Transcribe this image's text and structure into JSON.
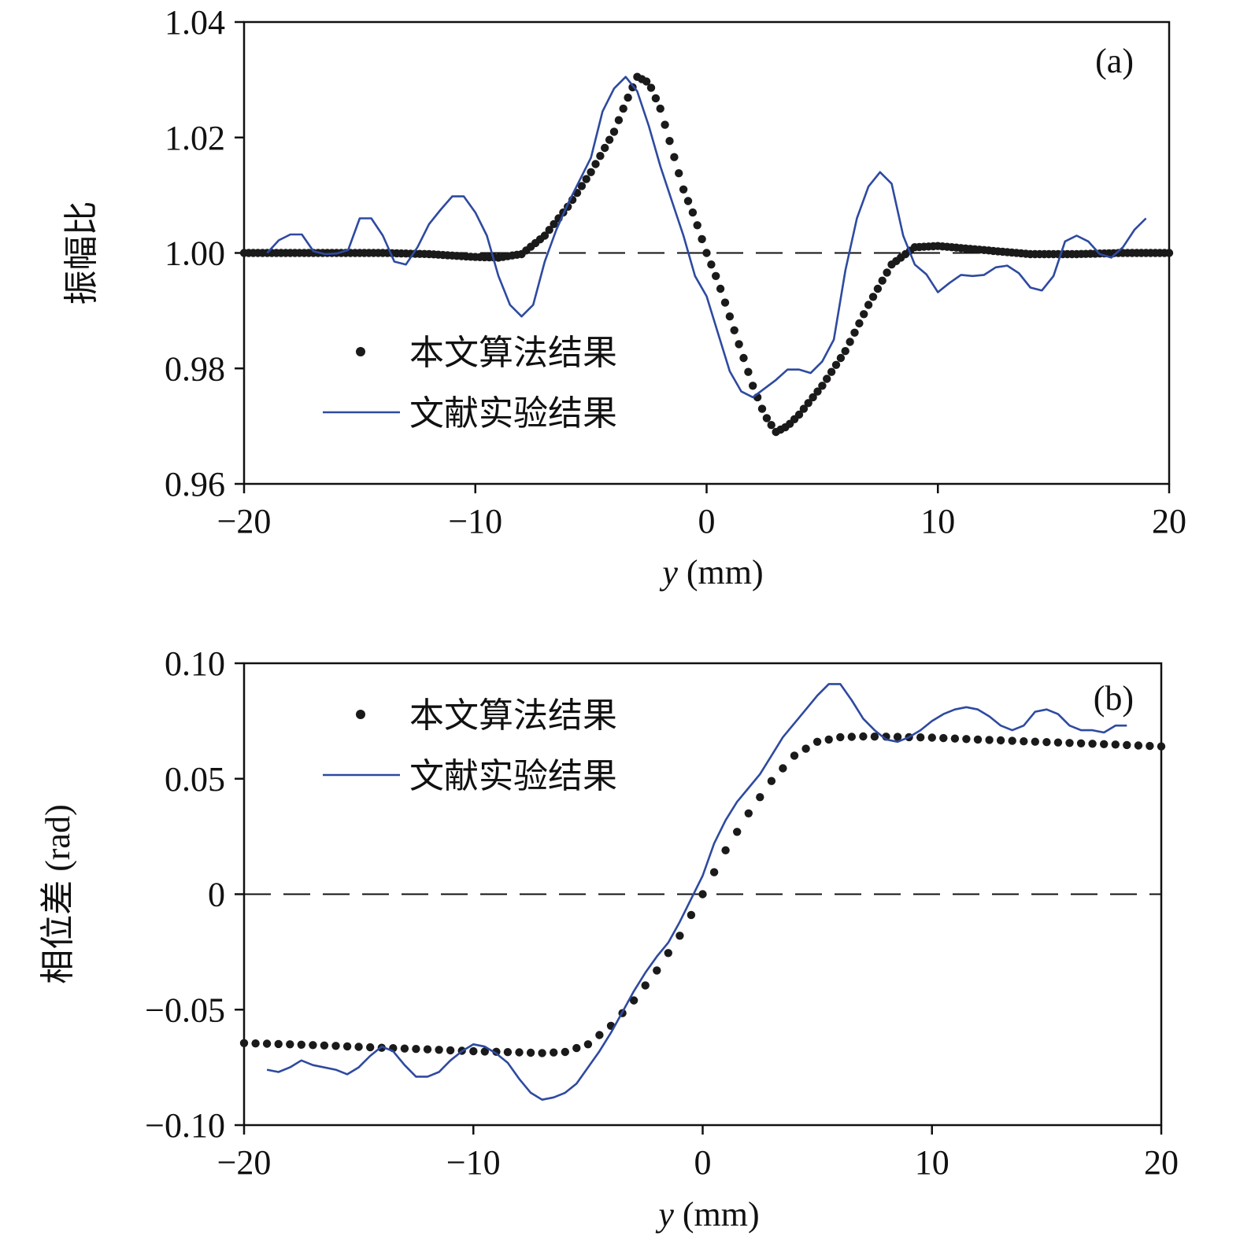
{
  "chart_data": [
    {
      "type": "line",
      "panel_label": "(a)",
      "xlabel_var": "y",
      "xlabel_unit": " (mm)",
      "ylabel": "振幅比",
      "xlim": [
        -20,
        20
      ],
      "ylim": [
        0.96,
        1.04
      ],
      "x_ticks": [
        -20,
        -10,
        0,
        10,
        20
      ],
      "x_tick_labels": [
        "−20",
        "−10",
        "0",
        "10",
        "20"
      ],
      "y_ticks": [
        0.96,
        0.98,
        1.0,
        1.02,
        1.04
      ],
      "y_tick_labels": [
        "0.96",
        "0.98",
        "1.00",
        "1.02",
        "1.04"
      ],
      "reference_line": {
        "y": 1.0,
        "style": "dashed"
      },
      "legend_position": "middle-left",
      "series": [
        {
          "name": "本文算法结果",
          "style": "dots",
          "color": "#1a1a1a",
          "x": [
            -20,
            -18,
            -16,
            -14,
            -12,
            -10,
            -9,
            -8,
            -7,
            -6,
            -5,
            -4,
            -3.5,
            -3,
            -2.5,
            -2,
            -1.5,
            -1,
            -0.5,
            0,
            0.5,
            1,
            1.5,
            2,
            2.5,
            3,
            3.5,
            4,
            5,
            6,
            7,
            8,
            9,
            10,
            12,
            14,
            16,
            18,
            20
          ],
          "y": [
            1.0,
            1.0,
            1.0,
            1.0,
            0.9998,
            0.9993,
            0.9992,
            0.9998,
            1.003,
            1.008,
            1.014,
            1.021,
            1.026,
            1.0305,
            1.0295,
            1.025,
            1.018,
            1.011,
            1.006,
            1.0,
            0.995,
            0.989,
            0.983,
            0.977,
            0.972,
            0.969,
            0.97,
            0.972,
            0.977,
            0.983,
            0.991,
            0.998,
            1.001,
            1.0012,
            1.0005,
            0.9998,
            0.9998,
            1.0,
            1.0
          ]
        },
        {
          "name": "文献实验结果",
          "style": "line",
          "color": "#2e4aa0",
          "x": [
            -19,
            -18.5,
            -18,
            -17.5,
            -17,
            -16.5,
            -16,
            -15.5,
            -15,
            -14.5,
            -14,
            -13.5,
            -13,
            -12.5,
            -12,
            -11.5,
            -11,
            -10.5,
            -10,
            -9.5,
            -9,
            -8.5,
            -8,
            -7.5,
            -7,
            -6.5,
            -6,
            -5.5,
            -5,
            -4.5,
            -4,
            -3.5,
            -3,
            -2.5,
            -2,
            -1.5,
            -1,
            -0.5,
            0,
            0.5,
            1,
            1.5,
            2,
            2.5,
            3,
            3.5,
            4,
            4.5,
            5,
            5.5,
            6,
            6.5,
            7,
            7.5,
            8,
            8.5,
            9,
            9.5,
            10,
            10.5,
            11,
            11.5,
            12,
            12.5,
            13,
            13.5,
            14,
            14.5,
            15,
            15.5,
            16,
            16.5,
            17,
            17.5,
            18,
            18.5,
            19
          ],
          "y": [
            1.0,
            1.0022,
            1.0032,
            1.0032,
            1.0003,
            0.9998,
            0.9999,
            1.0005,
            1.006,
            1.006,
            1.003,
            0.9985,
            0.998,
            1.001,
            1.005,
            1.0075,
            1.0098,
            1.0098,
            1.007,
            1.003,
            0.996,
            0.991,
            0.989,
            0.991,
            0.9985,
            1.004,
            1.0085,
            1.0125,
            1.0165,
            1.0245,
            1.0285,
            1.0305,
            1.028,
            1.022,
            1.015,
            1.009,
            1.003,
            0.996,
            0.9925,
            0.986,
            0.9795,
            0.976,
            0.975,
            0.9765,
            0.978,
            0.9798,
            0.9798,
            0.9792,
            0.9812,
            0.985,
            0.997,
            1.006,
            1.0115,
            1.014,
            1.012,
            1.003,
            0.998,
            0.9963,
            0.9932,
            0.9948,
            0.9962,
            0.996,
            0.9962,
            0.9975,
            0.9978,
            0.9965,
            0.994,
            0.9935,
            0.996,
            1.002,
            1.003,
            1.002,
            0.9998,
            0.9992,
            1.001,
            1.004,
            1.006
          ]
        }
      ]
    },
    {
      "type": "line",
      "panel_label": "(b)",
      "xlabel_var": "y",
      "xlabel_unit": " (mm)",
      "ylabel": "相位差 (rad)",
      "xlim": [
        -20,
        20
      ],
      "ylim": [
        -0.1,
        0.1
      ],
      "x_ticks": [
        -20,
        -10,
        0,
        10,
        20
      ],
      "x_tick_labels": [
        "−20",
        "−10",
        "0",
        "10",
        "20"
      ],
      "y_ticks": [
        -0.1,
        -0.05,
        0,
        0.05,
        0.1
      ],
      "y_tick_labels": [
        "−0.10",
        "−0.05",
        "0",
        "0.05",
        "0.10"
      ],
      "reference_line": {
        "y": 0,
        "style": "dashed"
      },
      "legend_position": "top-left",
      "series": [
        {
          "name": "本文算法结果",
          "style": "dots",
          "color": "#1a1a1a",
          "x": [
            -20,
            -18,
            -16,
            -14,
            -12,
            -10,
            -8,
            -7,
            -6,
            -5,
            -4,
            -3,
            -2,
            -1,
            0,
            1,
            2,
            3,
            4,
            5,
            6,
            7,
            8,
            10,
            12,
            14,
            16,
            18,
            20
          ],
          "y": [
            -0.0645,
            -0.065,
            -0.0657,
            -0.0665,
            -0.0672,
            -0.068,
            -0.0685,
            -0.0688,
            -0.0683,
            -0.065,
            -0.057,
            -0.046,
            -0.033,
            -0.018,
            0.0,
            0.019,
            0.035,
            0.049,
            0.06,
            0.066,
            0.068,
            0.0683,
            0.0682,
            0.0678,
            0.067,
            0.0662,
            0.0655,
            0.0648,
            0.064
          ]
        },
        {
          "name": "文献实验结果",
          "style": "line",
          "color": "#2e4aa0",
          "x": [
            -19,
            -18.5,
            -18,
            -17.5,
            -17,
            -16,
            -15.5,
            -15,
            -14.5,
            -14,
            -13.5,
            -13,
            -12.5,
            -12,
            -11.5,
            -11,
            -10.5,
            -10,
            -9.5,
            -9,
            -8.5,
            -8,
            -7.5,
            -7,
            -6.5,
            -6,
            -5.5,
            -5,
            -4.5,
            -4,
            -3.5,
            -3,
            -2.5,
            -2,
            -1.5,
            -1,
            -0.5,
            0,
            0.5,
            1,
            1.5,
            2,
            2.5,
            3,
            3.5,
            4,
            4.5,
            5,
            5.5,
            6,
            6.5,
            7,
            7.5,
            8,
            8.5,
            9,
            9.5,
            10,
            10.5,
            11,
            11.5,
            12,
            12.5,
            13,
            13.5,
            14,
            14.5,
            15,
            15.5,
            16,
            16.5,
            17,
            17.5,
            18,
            18.5
          ],
          "y": [
            -0.076,
            -0.077,
            -0.075,
            -0.072,
            -0.074,
            -0.076,
            -0.078,
            -0.075,
            -0.07,
            -0.066,
            -0.068,
            -0.074,
            -0.079,
            -0.079,
            -0.077,
            -0.072,
            -0.068,
            -0.065,
            -0.066,
            -0.069,
            -0.073,
            -0.08,
            -0.086,
            -0.089,
            -0.088,
            -0.086,
            -0.082,
            -0.075,
            -0.068,
            -0.06,
            -0.051,
            -0.042,
            -0.034,
            -0.027,
            -0.021,
            -0.012,
            -0.002,
            0.008,
            0.022,
            0.032,
            0.04,
            0.046,
            0.052,
            0.06,
            0.068,
            0.074,
            0.08,
            0.086,
            0.091,
            0.091,
            0.084,
            0.076,
            0.071,
            0.067,
            0.066,
            0.068,
            0.071,
            0.075,
            0.078,
            0.08,
            0.081,
            0.08,
            0.077,
            0.073,
            0.071,
            0.073,
            0.079,
            0.08,
            0.078,
            0.073,
            0.071,
            0.071,
            0.07,
            0.073,
            0.073
          ]
        }
      ]
    }
  ]
}
